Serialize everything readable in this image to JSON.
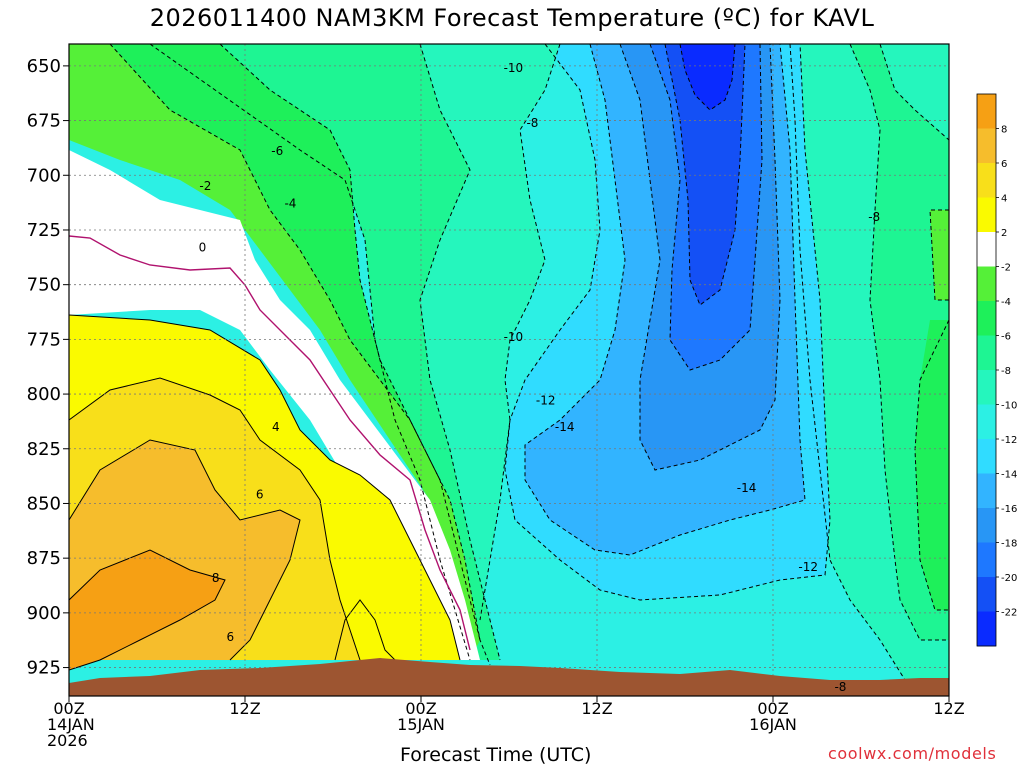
{
  "chart_data": {
    "type": "heatmap",
    "title": "2026011400 NAM3KM Forecast Temperature (ºC) for KAVL",
    "xlabel": "Forecast Time (UTC)",
    "ylabel": "",
    "x_range_hours": [
      0,
      60
    ],
    "y_range_hpa": [
      938,
      640
    ],
    "y_scale": "pressure, increasing downward",
    "yticks": [
      650,
      675,
      700,
      725,
      750,
      775,
      800,
      825,
      850,
      875,
      900,
      925
    ],
    "xticks": [
      {
        "hour": 0,
        "lines": [
          "00Z",
          "14JAN",
          "2026"
        ]
      },
      {
        "hour": 12,
        "lines": [
          "12Z"
        ]
      },
      {
        "hour": 24,
        "lines": [
          "00Z",
          "15JAN"
        ]
      },
      {
        "hour": 36,
        "lines": [
          "12Z"
        ]
      },
      {
        "hour": 48,
        "lines": [
          "00Z",
          "16JAN"
        ]
      },
      {
        "hour": 60,
        "lines": [
          "12Z"
        ]
      }
    ],
    "grid": true,
    "contour_interval_c": 2,
    "colorbar": {
      "levels": [
        -24,
        -22,
        -20,
        -18,
        -16,
        -14,
        -12,
        -10,
        -8,
        -6,
        -4,
        -2,
        2,
        4,
        6,
        8,
        10
      ],
      "labels": [
        "-22",
        "-20",
        "-18",
        "-16",
        "-14",
        "-12",
        "-10",
        "-8",
        "-6",
        "-4",
        "-2",
        "2",
        "4",
        "6",
        "8"
      ],
      "colors": [
        "#0a2bff",
        "#1450f5",
        "#1e78ff",
        "#2896f5",
        "#32b4ff",
        "#30dcff",
        "#2cf0e4",
        "#25f6bd",
        "#1ef593",
        "#1ef05a",
        "#55f038",
        "#ffffff",
        "#fafa00",
        "#f8df1a",
        "#f6bd2c",
        "#f6a014"
      ]
    },
    "contour_labels": [
      {
        "text": "-10",
        "x_hours": 30.3,
        "y_hpa": 651
      },
      {
        "text": "-8",
        "x_hours": 31.6,
        "y_hpa": 676
      },
      {
        "text": "-6",
        "x_hours": 14.2,
        "y_hpa": 689
      },
      {
        "text": "-2",
        "x_hours": 9.3,
        "y_hpa": 705
      },
      {
        "text": "-4",
        "x_hours": 15.1,
        "y_hpa": 713
      },
      {
        "text": "0",
        "x_hours": 9.1,
        "y_hpa": 733
      },
      {
        "text": "-8",
        "x_hours": 54.9,
        "y_hpa": 719
      },
      {
        "text": "-10",
        "x_hours": 30.3,
        "y_hpa": 774
      },
      {
        "text": "-12",
        "x_hours": 32.5,
        "y_hpa": 803
      },
      {
        "text": "-14",
        "x_hours": 33.8,
        "y_hpa": 815
      },
      {
        "text": "4",
        "x_hours": 14.1,
        "y_hpa": 815
      },
      {
        "text": "6",
        "x_hours": 13.0,
        "y_hpa": 846
      },
      {
        "text": "-14",
        "x_hours": 46.2,
        "y_hpa": 843
      },
      {
        "text": "8",
        "x_hours": 10.0,
        "y_hpa": 884
      },
      {
        "text": "-12",
        "x_hours": 50.4,
        "y_hpa": 879
      },
      {
        "text": "6",
        "x_hours": 11.0,
        "y_hpa": 911
      },
      {
        "text": "-8",
        "x_hours": 52.6,
        "y_hpa": 934
      }
    ],
    "temperature_regions_c": [
      {
        "range": "6 to 8+",
        "extent": "lower levels 875-935 hPa, 14JAN 00Z-09Z"
      },
      {
        "range": "2 to 6",
        "extent": "below ~770 hPa, 14JAN 00Z-15JAN 02Z"
      },
      {
        "range": "-2 to 2",
        "extent": "narrow band sloping from 680 hPa at 00Z to 930 hPa near 15JAN 03Z"
      },
      {
        "range": "-14 to -12",
        "extent": "815-875 hPa, 15JAN 07Z-16JAN 03Z"
      },
      {
        "range": "-22 to -18",
        "extent": "650-750 hPa core near 15JAN 18Z-21Z"
      },
      {
        "range": "-8 to -4",
        "extent": "upper levels late in period, 16JAN 06Z-12Z"
      }
    ],
    "ground": {
      "color": "#9d5531",
      "approx_surface_hpa": 932
    }
  },
  "footer": {
    "xlabel": "Forecast Time (UTC)",
    "credit": "coolwx.com/models"
  }
}
